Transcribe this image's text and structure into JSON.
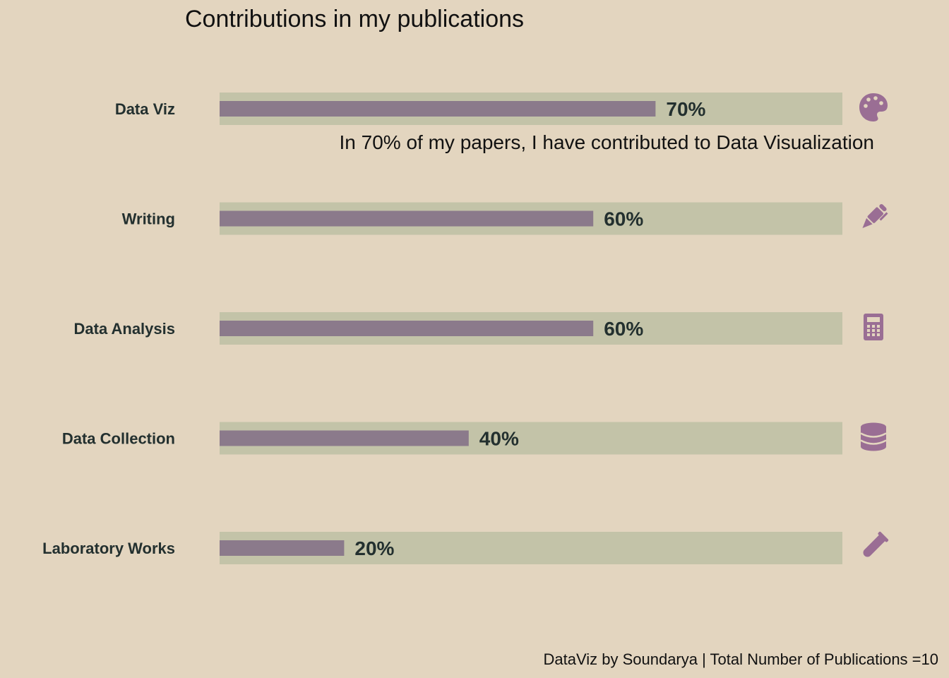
{
  "colors": {
    "background": "#e3d5bf",
    "track": "#c3c3a8",
    "bar": "#8b7a8b",
    "icon": "#9a6e94",
    "label": "#23302f"
  },
  "chart_data": {
    "type": "bar",
    "orientation": "horizontal",
    "title": "Contributions in my publications",
    "annotation": "In 70% of my papers, I have contributed to Data Visualization",
    "caption": "DataViz by Soundarya | Total Number of Publications =10",
    "xlim": [
      0,
      100
    ],
    "grid": false,
    "categories": [
      "Data Viz",
      "Writing",
      "Data Analysis",
      "Data Collection",
      "Laboratory Works"
    ],
    "values": [
      70,
      60,
      60,
      40,
      20
    ],
    "value_labels": [
      "70%",
      "60%",
      "60%",
      "40%",
      "20%"
    ],
    "icons": [
      "palette-icon",
      "pen-icon",
      "calculator-icon",
      "database-icon",
      "test-tube-icon"
    ]
  }
}
